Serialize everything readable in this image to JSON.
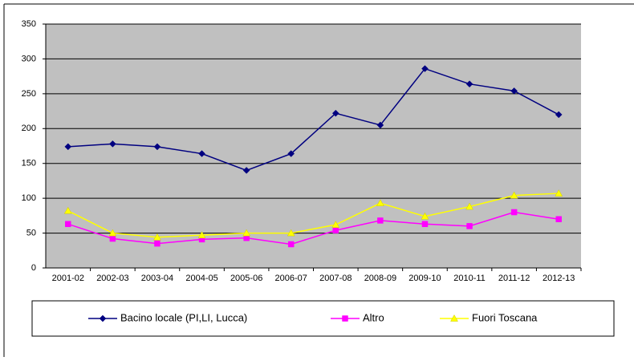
{
  "chart_data": {
    "type": "line",
    "categories": [
      "2001-02",
      "2002-03",
      "2003-04",
      "2004-05",
      "2005-06",
      "2006-07",
      "2007-08",
      "2008-09",
      "2009-10",
      "2010-11",
      "2011-12",
      "2012-13"
    ],
    "series": [
      {
        "name": "Bacino locale (PI,LI, Lucca)",
        "color": "#000080",
        "marker": "diamond",
        "values": [
          174,
          178,
          174,
          164,
          140,
          164,
          222,
          205,
          286,
          264,
          254,
          220
        ]
      },
      {
        "name": "Altro",
        "color": "#ff00ff",
        "marker": "square",
        "values": [
          63,
          42,
          35,
          41,
          43,
          34,
          54,
          68,
          63,
          60,
          80,
          70
        ]
      },
      {
        "name": "Fuori Toscana",
        "color": "#ffff00",
        "marker": "triangle",
        "values": [
          82,
          50,
          44,
          47,
          50,
          50,
          62,
          93,
          74,
          88,
          104,
          107
        ]
      }
    ],
    "ylim": [
      0,
      350
    ],
    "yticks": [
      0,
      50,
      100,
      150,
      200,
      250,
      300,
      350
    ],
    "grid": true,
    "legend": "bottom"
  }
}
